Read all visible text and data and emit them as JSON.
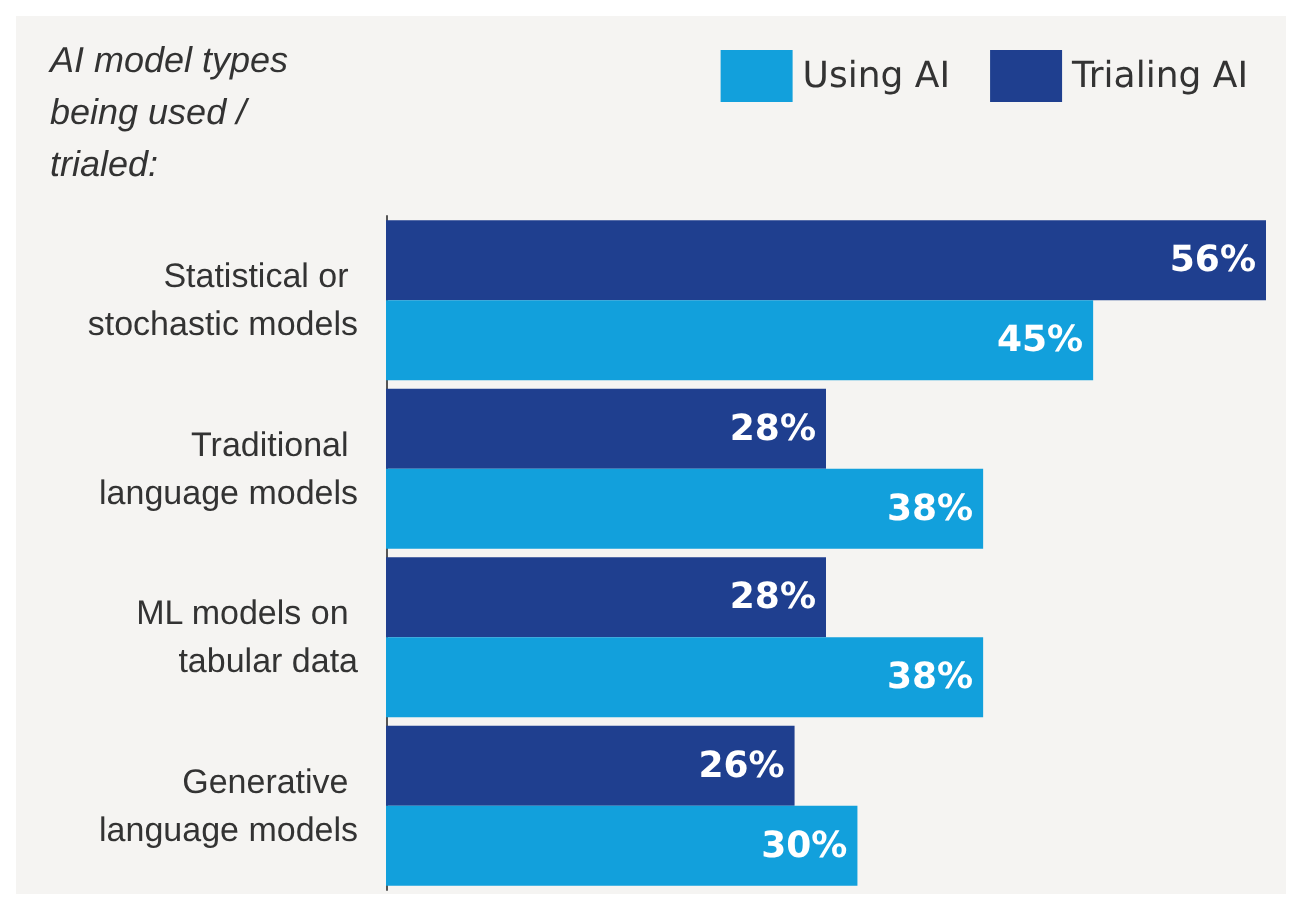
{
  "chart_data": {
    "type": "bar",
    "orientation": "horizontal",
    "title": "AI model types being used / trialed:",
    "categories": [
      "Statistical or stochastic models",
      "Traditional language models",
      "ML models on tabular data",
      "Generative language models"
    ],
    "series": [
      {
        "name": "Trialing AI",
        "color": "#1f3f8f",
        "values": [
          56,
          28,
          28,
          26
        ],
        "value_labels": [
          "56%",
          "28%",
          "28%",
          "26%"
        ]
      },
      {
        "name": "Using AI",
        "color": "#12a0dc",
        "values": [
          45,
          38,
          38,
          30
        ],
        "value_labels": [
          "45%",
          "38%",
          "38%",
          "30%"
        ]
      }
    ],
    "legend": "top right"
  }
}
